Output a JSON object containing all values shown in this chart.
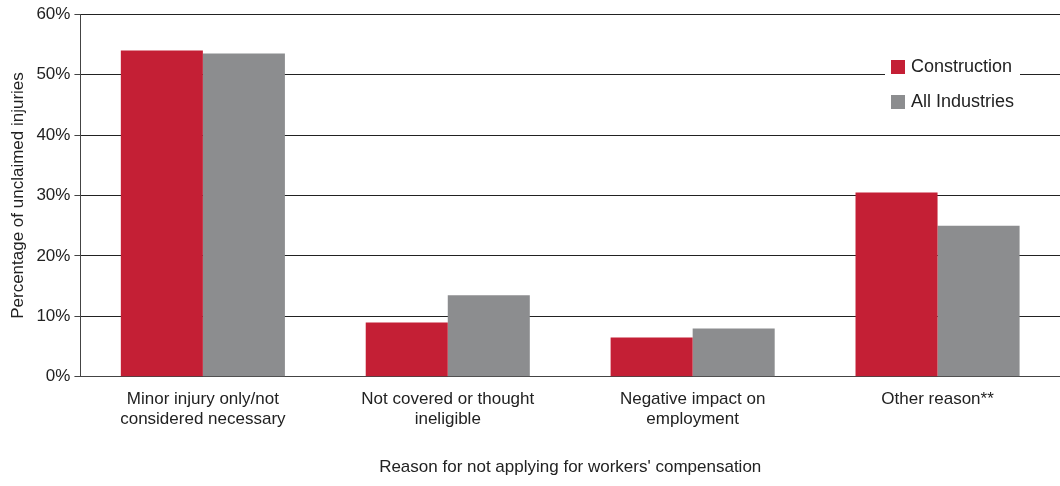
{
  "chart_data": {
    "type": "bar",
    "xlabel": "Reason for not applying for workers' compensation",
    "ylabel": "Percentage of unclaimed injuries",
    "categories": [
      "Minor injury only/not considered necessary",
      "Not covered or thought ineligible",
      "Negative impact on employment",
      "Other reason**"
    ],
    "series": [
      {
        "name": "Construction",
        "color": "#c41f35",
        "values": [
          54,
          9,
          6.5,
          30.5
        ]
      },
      {
        "name": "All Industries",
        "color": "#8c8d8f",
        "values": [
          53.5,
          13.5,
          8,
          25
        ]
      }
    ],
    "ylim": [
      0,
      60
    ],
    "yticks": [
      {
        "value": 0,
        "label": "0%"
      },
      {
        "value": 10,
        "label": "10%"
      },
      {
        "value": 20,
        "label": "20%"
      },
      {
        "value": 30,
        "label": "30%"
      },
      {
        "value": 40,
        "label": "40%"
      },
      {
        "value": 50,
        "label": "50%"
      },
      {
        "value": 60,
        "label": "60%"
      }
    ],
    "grid": "y",
    "legend": "top right"
  }
}
